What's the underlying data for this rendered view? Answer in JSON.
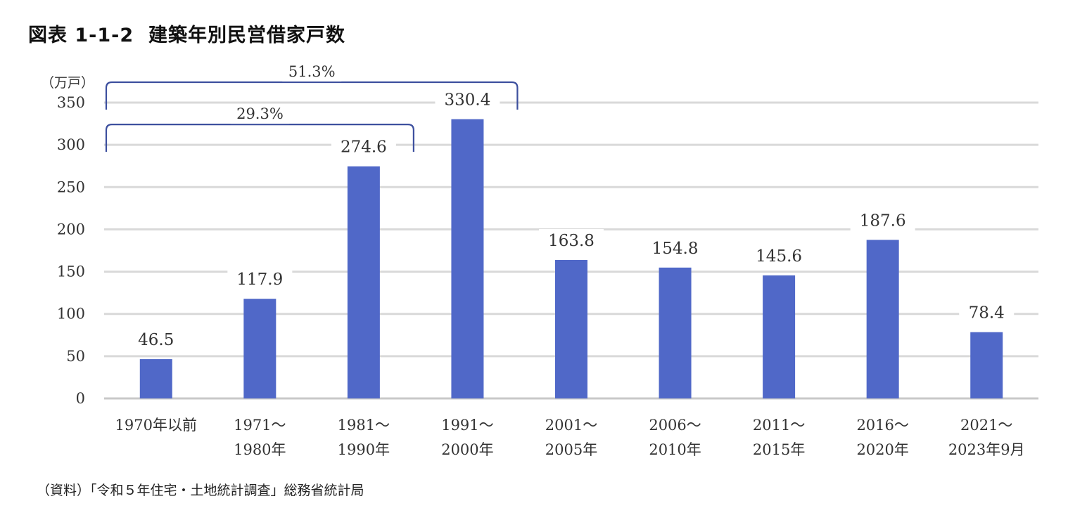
{
  "title": "図表 1-1-2  建築年別民営借家戸数",
  "source": "（資料）「令和５年住宅・土地統計調査」総務省統計局",
  "chart_data": {
    "type": "bar",
    "title": "建築年別民営借家戸数",
    "ylabel": "（万戸）",
    "xlabel": "",
    "ylim": [
      0,
      350
    ],
    "yticks": [
      0,
      50,
      100,
      150,
      200,
      250,
      300,
      350
    ],
    "grid": true,
    "categories": [
      [
        "1970年以前"
      ],
      [
        "1971～",
        "1980年"
      ],
      [
        "1981～",
        "1990年"
      ],
      [
        "1991～",
        "2000年"
      ],
      [
        "2001～",
        "2005年"
      ],
      [
        "2006～",
        "2010年"
      ],
      [
        "2011～",
        "2015年"
      ],
      [
        "2016～",
        "2020年"
      ],
      [
        "2021～",
        "2023年9月"
      ]
    ],
    "values": [
      46.5,
      117.9,
      274.6,
      330.4,
      163.8,
      154.8,
      145.6,
      187.6,
      78.4
    ],
    "value_labels": [
      "46.5",
      "117.9",
      "274.6",
      "330.4",
      "163.8",
      "154.8",
      "145.6",
      "187.6",
      "78.4"
    ],
    "bar_color": "#5068C8",
    "annotations": [
      {
        "label": "29.3%",
        "from_category": 0,
        "to_category": 2,
        "level": 300
      },
      {
        "label": "51.3%",
        "from_category": 0,
        "to_category": 3,
        "level": 350
      }
    ]
  }
}
